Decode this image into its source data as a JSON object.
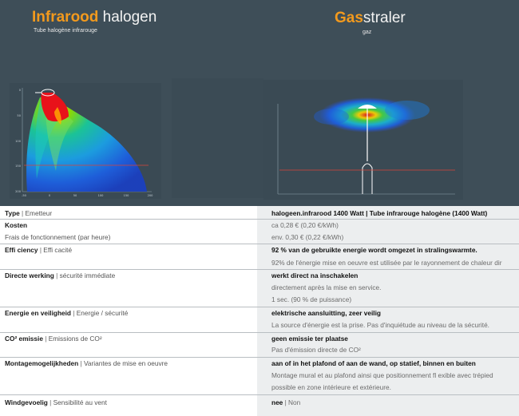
{
  "left_panel": {
    "title_accent": "Infrarood",
    "title_rest": " halogen",
    "subtitle": "Tube halogène infrarouge",
    "y_ticks": [
      "0",
      "50",
      "100",
      "150",
      "200"
    ],
    "x_ticks": [
      "-50",
      "0",
      "50",
      "100",
      "150",
      "200"
    ]
  },
  "right_panel": {
    "title_accent": "Gas",
    "title_rest": "straler",
    "subtitle": "gaz"
  },
  "colors": {
    "panel_bg": "#3e4e58",
    "accent": "#f39a1d",
    "table_right_bg": "#eceeef",
    "reference_line": "#d8443a"
  },
  "table": {
    "rows": [
      {
        "label_bold": "Type",
        "label_sep": " | ",
        "label_fr": "Emetteur",
        "values": [
          {
            "bold": "halogeen.infrarood 1400 Watt | Tube infrarouge halogène (1400 Watt)",
            "plain": ""
          }
        ]
      },
      {
        "label_bold": "Kosten",
        "label_sep": "",
        "label_fr": "",
        "values": [
          {
            "bold": "",
            "plain": "ca 0,28 € (0,20 €/kWh)"
          }
        ]
      },
      {
        "label_bold": "",
        "label_sep": "",
        "label_fr": "Frais de fonctionnement (par heure)",
        "values": [
          {
            "bold": "",
            "plain": "env. 0,30 € (0,22 €/kWh)"
          }
        ]
      },
      {
        "label_bold": "Effi ciency",
        "label_sep": " | ",
        "label_fr": "Effi cacité",
        "values": [
          {
            "bold": "92 % van de gebruikte energie wordt omgezet in stralingswarmte.",
            "plain": ""
          },
          {
            "bold": "",
            "plain": "92% de l'énergie mise en oeuvre est utilisée par le rayonnement de chaleur dir"
          }
        ]
      },
      {
        "label_bold": "Directe werking",
        "label_sep": " | ",
        "label_fr": "sécurité immédiate",
        "values": [
          {
            "bold": "werkt direct na inschakelen",
            "plain": ""
          },
          {
            "bold": "",
            "plain": "directement après la mise en service."
          },
          {
            "bold": "",
            "plain": "1 sec. (90 % de puissance)"
          }
        ]
      },
      {
        "label_bold": "Energie en veiligheid",
        "label_sep": " | ",
        "label_fr": "Energie / sécurité",
        "values": [
          {
            "bold": "elektrische aansluitting, zeer veilig",
            "plain": ""
          },
          {
            "bold": "",
            "plain": "La source d'énergie est la prise. Pas d'inquiétude au niveau de la sécurité."
          }
        ]
      },
      {
        "label_bold": "CO² emissie",
        "label_sep": " | ",
        "label_fr": "Emissions de CO²",
        "values": [
          {
            "bold": "geen emissie ter plaatse",
            "plain": ""
          },
          {
            "bold": "",
            "plain": "Pas d'émission directe de CO²"
          }
        ]
      },
      {
        "label_bold": "Montagemogelijkheden",
        "label_sep": " | ",
        "label_fr": "Variantes de mise en oeuvre",
        "values": [
          {
            "bold": "aan of in het plafond of aan de wand, op statief, binnen en buiten",
            "plain": ""
          },
          {
            "bold": "",
            "plain": "Montage mural et au plafond ainsi que positionnement fl exible avec trépied"
          },
          {
            "bold": "",
            "plain": "possible en zone intérieure et extérieure."
          }
        ]
      },
      {
        "label_bold": "Windgevoelig",
        "label_sep": " | ",
        "label_fr": "Sensibilité au vent",
        "values": [
          {
            "bold": "nee",
            "plain": " | Non"
          }
        ]
      }
    ]
  }
}
